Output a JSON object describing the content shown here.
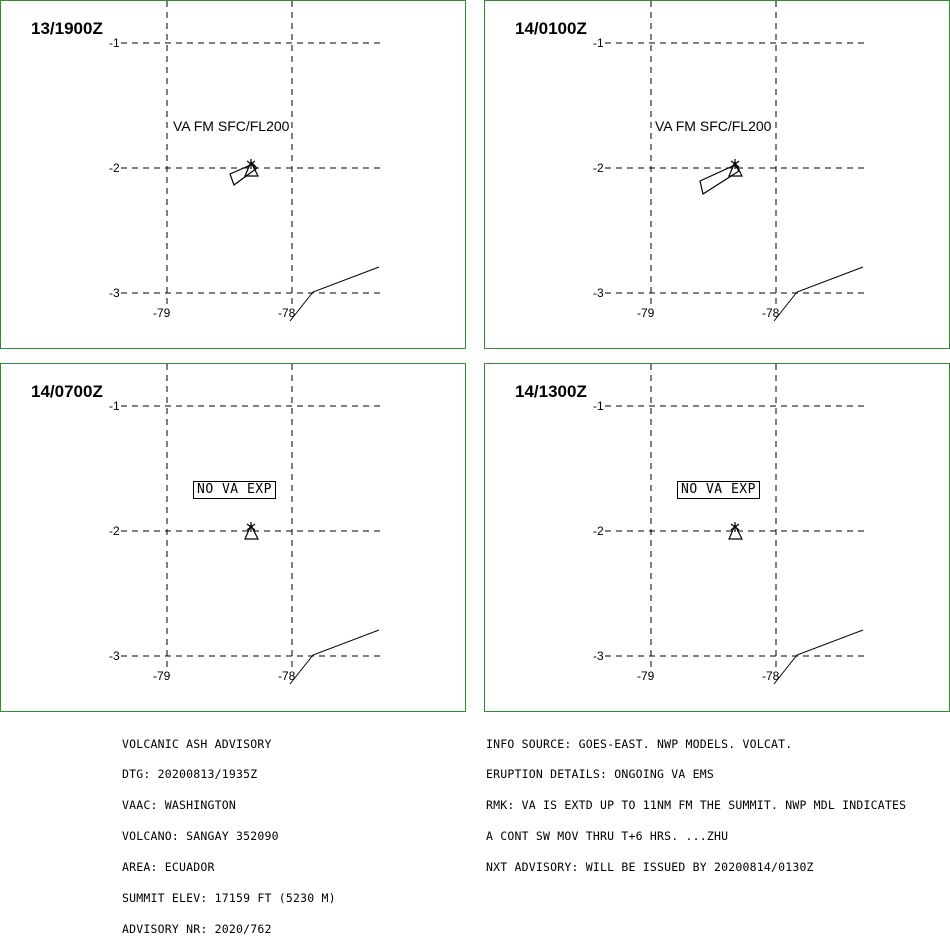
{
  "panels": [
    {
      "time": "13/1900Z",
      "va_label": "VA FM SFC/FL200",
      "no_va": ""
    },
    {
      "time": "14/0100Z",
      "va_label": "VA FM SFC/FL200",
      "no_va": ""
    },
    {
      "time": "14/0700Z",
      "va_label": "",
      "no_va": "NO VA EXP"
    },
    {
      "time": "14/1300Z",
      "va_label": "",
      "no_va": "NO VA EXP"
    }
  ],
  "axes": {
    "lat_labels": [
      "-1",
      "-2",
      "-3"
    ],
    "lon_labels": [
      "-79",
      "-78"
    ]
  },
  "advisory_left": [
    "VOLCANIC ASH ADVISORY",
    "DTG: 20200813/1935Z",
    "VAAC: WASHINGTON",
    "VOLCANO: SANGAY 352090",
    "AREA: ECUADOR",
    "SUMMIT ELEV: 17159 FT (5230 M)",
    "ADVISORY NR: 2020/762"
  ],
  "advisory_right": [
    "INFO SOURCE: GOES-EAST. NWP MODELS. VOLCAT.",
    "ERUPTION DETAILS: ONGOING VA EMS",
    "RMK: VA IS EXTD UP TO 11NM FM THE SUMMIT. NWP MDL INDICATES",
    "A CONT SW MOV THRU T+6 HRS. ...ZHU",
    "NXT ADVISORY: WILL BE ISSUED BY 20200814/0130Z"
  ]
}
